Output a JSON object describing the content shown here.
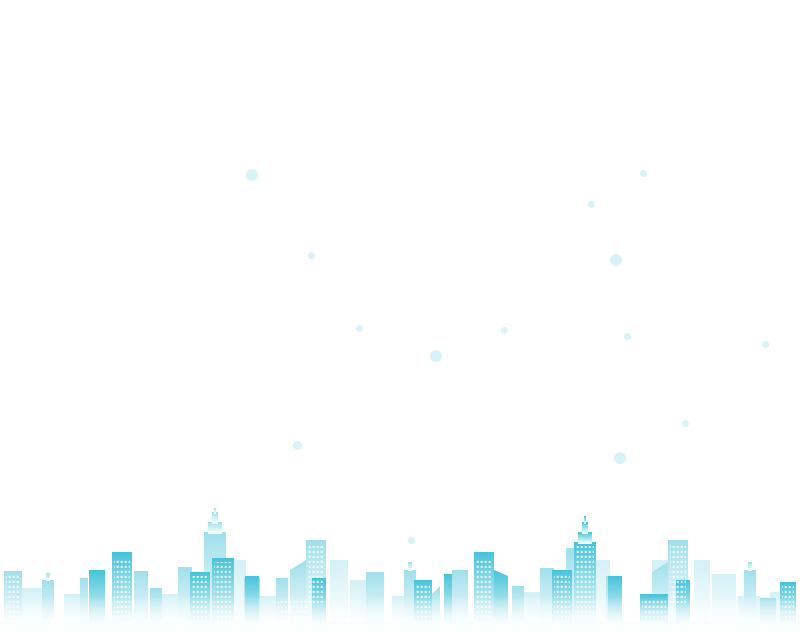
{
  "background_color": "#ffffff",
  "accent_color": "#4cc6dd",
  "light_accent_color": "#bfeaf3",
  "illustration": {
    "icon": "city-skyline-icon",
    "particles_icon": "floating-dot-icon"
  }
}
